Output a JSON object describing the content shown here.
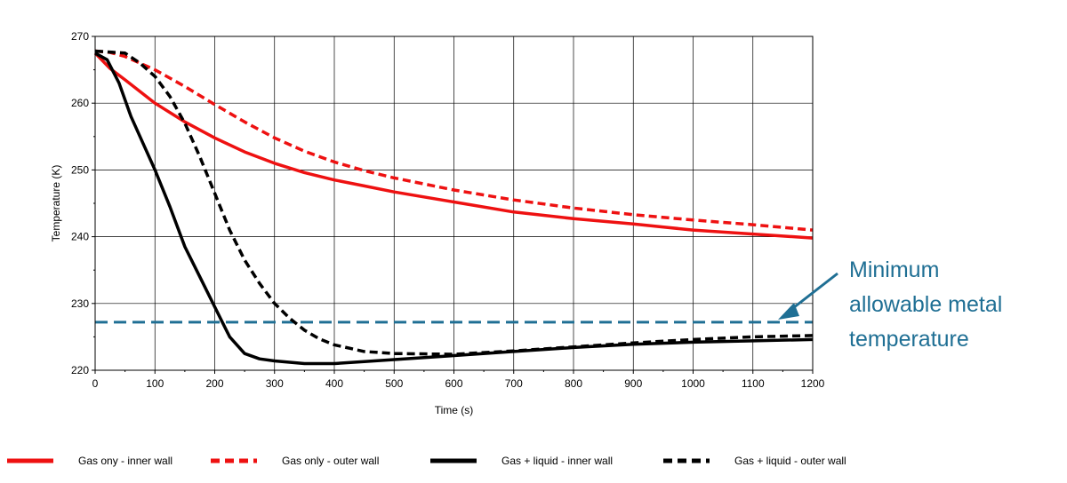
{
  "chart_data": {
    "type": "line",
    "xlabel": "Time (s)",
    "ylabel": "Temperature (K)",
    "xlim": [
      0,
      1200
    ],
    "ylim": [
      220,
      270
    ],
    "xticks": [
      0,
      100,
      200,
      300,
      400,
      500,
      600,
      700,
      800,
      900,
      1000,
      1100,
      1200
    ],
    "yticks": [
      220,
      230,
      240,
      250,
      260,
      270
    ],
    "grid": true,
    "legend_position": "bottom",
    "series": [
      {
        "name": "Gas ony - inner wall",
        "color": "#ee1111",
        "style": "solid",
        "x": [
          0,
          25,
          50,
          100,
          150,
          200,
          250,
          300,
          350,
          400,
          450,
          500,
          600,
          700,
          800,
          900,
          1000,
          1100,
          1200
        ],
        "y": [
          267.5,
          265.2,
          263.5,
          260.0,
          257.2,
          254.8,
          252.7,
          251.0,
          249.6,
          248.5,
          247.6,
          246.7,
          245.2,
          243.7,
          242.7,
          241.9,
          241.0,
          240.4,
          239.8
        ]
      },
      {
        "name": "Gas only - outer wall",
        "color": "#ee1111",
        "style": "dashed",
        "x": [
          0,
          25,
          50,
          100,
          150,
          200,
          250,
          300,
          350,
          400,
          450,
          500,
          600,
          700,
          800,
          900,
          1000,
          1100,
          1200
        ],
        "y": [
          267.8,
          267.6,
          267.0,
          265.0,
          262.5,
          259.8,
          257.2,
          254.8,
          252.8,
          251.2,
          249.9,
          248.8,
          247.0,
          245.5,
          244.3,
          243.3,
          242.5,
          241.8,
          241.0
        ]
      },
      {
        "name": "Gas + liquid - inner wall",
        "color": "#000000",
        "style": "solid",
        "x": [
          0,
          20,
          40,
          60,
          80,
          100,
          125,
          150,
          175,
          200,
          225,
          250,
          275,
          300,
          350,
          400,
          450,
          500,
          600,
          700,
          800,
          900,
          1000,
          1100,
          1200
        ],
        "y": [
          267.5,
          266.5,
          263.0,
          258.0,
          254.0,
          250.0,
          244.5,
          238.5,
          234.0,
          229.5,
          225.0,
          222.5,
          221.7,
          221.4,
          221.0,
          221.0,
          221.3,
          221.6,
          222.2,
          222.8,
          223.4,
          223.9,
          224.2,
          224.4,
          224.6
        ]
      },
      {
        "name": "Gas + liquid - outer wall",
        "color": "#000000",
        "style": "dashed",
        "x": [
          0,
          50,
          75,
          100,
          125,
          150,
          175,
          200,
          225,
          250,
          275,
          300,
          325,
          350,
          375,
          400,
          450,
          500,
          600,
          700,
          800,
          900,
          1000,
          1100,
          1200
        ],
        "y": [
          267.8,
          267.5,
          266.0,
          264.0,
          261.0,
          257.0,
          252.0,
          246.5,
          241.0,
          236.5,
          233.0,
          230.0,
          227.8,
          226.0,
          224.7,
          223.8,
          222.8,
          222.5,
          222.4,
          222.9,
          223.5,
          224.1,
          224.6,
          225.0,
          225.2
        ]
      }
    ],
    "reference_line": {
      "y": 227.2,
      "color": "#1f6f94",
      "style": "dashed"
    },
    "annotation": {
      "lines": [
        "Minimum",
        "allowable metal",
        "temperature"
      ],
      "color": "#1f6f94"
    }
  }
}
